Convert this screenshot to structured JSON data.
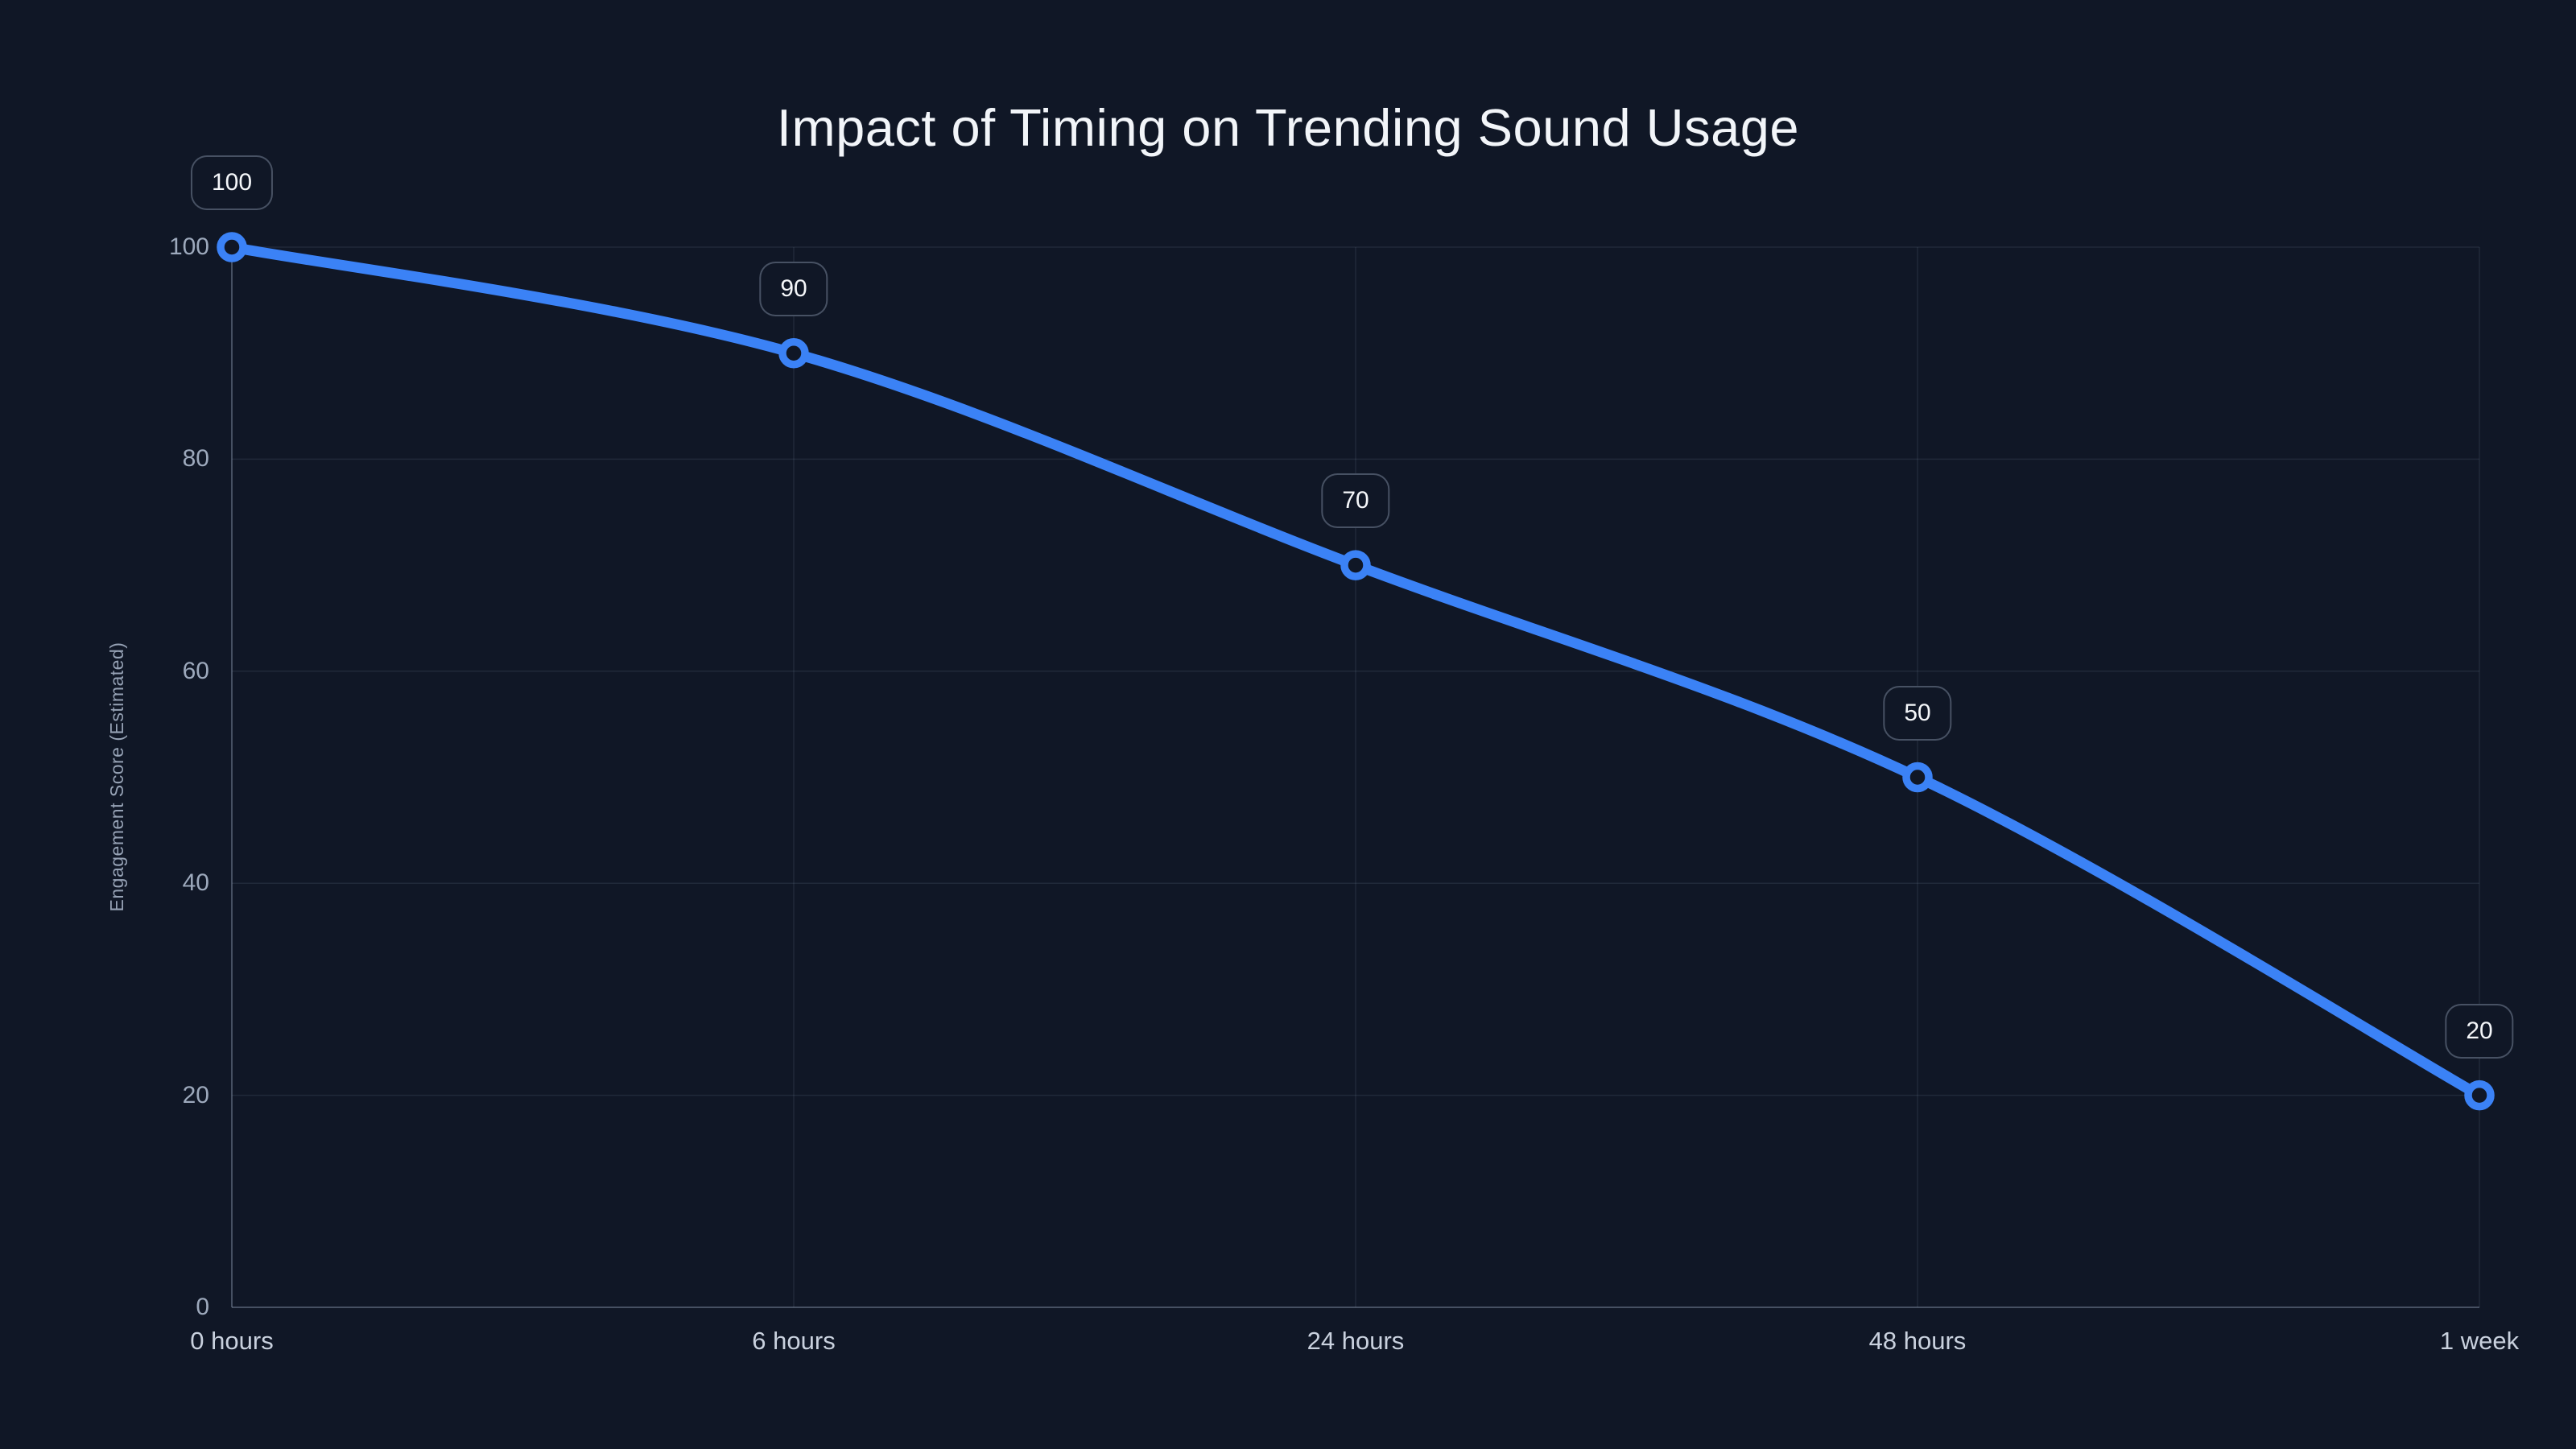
{
  "chart_data": {
    "type": "line",
    "title": "Impact of Timing on Trending Sound Usage",
    "ylabel": "Engagement Score (Estimated)",
    "xlabel": "",
    "categories": [
      "0 hours",
      "6 hours",
      "24 hours",
      "48 hours",
      "1 week"
    ],
    "values": [
      100,
      90,
      70,
      50,
      20
    ],
    "point_labels": [
      "100",
      "90",
      "70",
      "50",
      "20"
    ],
    "yticks": [
      0,
      20,
      40,
      60,
      80,
      100
    ],
    "ylim": [
      0,
      100
    ],
    "grid": true,
    "legend": false,
    "curve": "smooth",
    "colors": {
      "background": "#101726",
      "line": "#3b82f6",
      "marker_ring": "#3b82f6",
      "marker_fill": "#101726",
      "grid": "rgba(148,163,184,0.13)",
      "axis": "rgba(148,163,184,0.35)",
      "title_text": "#f2f5f9",
      "ytick_text": "#9da9bc",
      "xtick_text": "#c9d1de",
      "axis_title_text": "#96a2b5",
      "chip_text": "#f5f7fa",
      "chip_border": "rgba(148,163,184,0.42)"
    }
  }
}
